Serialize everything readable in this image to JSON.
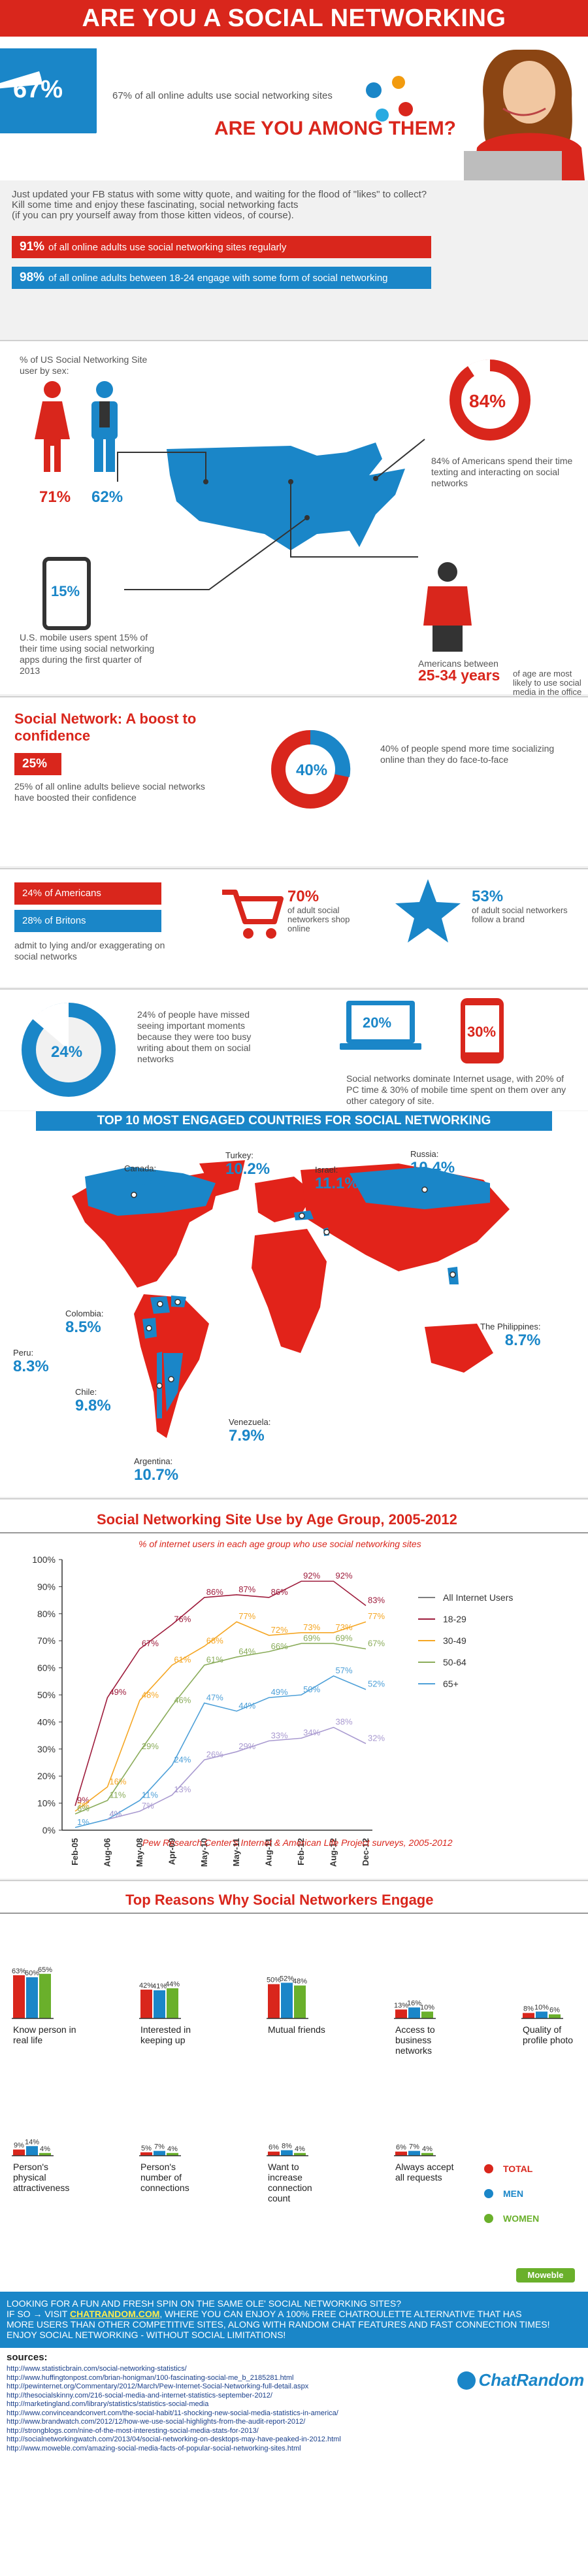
{
  "header": {
    "title": "ARE YOU A SOCIAL NETWORKING BUTTERFLY?"
  },
  "intro": {
    "stat_pct": "67%",
    "stat_text": "67% of all online adults use social networking sites",
    "question": "ARE YOU AMONG THEM?",
    "blurb": [
      "Just updated your FB status with some witty quote, and waiting for the flood of \"likes\" to collect?",
      "Kill some time and enjoy these fascinating, social networking facts",
      "(if you can pry yourself away from those kitten videos, of course)."
    ],
    "bar1_pct": "91%",
    "bar1_text": "of all online adults use social networking sites regularly",
    "bar2_pct": "98%",
    "bar2_text": "of all online adults between 18-24 engage with some form of social networking"
  },
  "usa": {
    "sex_label": "% of US Social Networking Site user by sex:",
    "women_pct": "71%",
    "men_pct": "62%",
    "texting_pct": "84%",
    "texting_text": "84% of Americans spend their time texting and interacting on social networks",
    "mobile_pct": "15%",
    "mobile_text": "U.S. mobile users spent 15% of their time using social networking apps during the first quarter of 2013",
    "age_intro": "Americans between",
    "age_range": "25-34 years",
    "age_text": "of age are most likely to use social media in the office"
  },
  "boost": {
    "title": "Social Network: A boost to confidence",
    "pct": "25%",
    "text": "25% of all online adults believe social networks have boosted their confidence",
    "f2f_pct": "40%",
    "f2f_text": "40% of people spend more time socializing online than they do face-to-face"
  },
  "lying": {
    "bar1": "24% of Americans",
    "bar2": "28% of Britons",
    "text": "admit to lying and/or exaggerating on social networks",
    "shop_pct": "70%",
    "shop_text": "of adult social networkers shop online",
    "brand_pct": "53%",
    "brand_text": "of adult social networkers follow a brand"
  },
  "missed": {
    "pct": "24%",
    "text": "24% of people have missed seeing important moments because they were too busy writing about them on social networks",
    "pc_pct": "20%",
    "mobile_pct": "30%",
    "usage_text": "Social networks dominate Internet usage, with 20% of PC time & 30% of mobile time spent on them over any other category of site."
  },
  "map": {
    "title": "TOP 10 MOST ENGAGED COUNTRIES FOR SOCIAL NETWORKING",
    "countries": [
      {
        "name": "Canada:",
        "value": "10.2%"
      },
      {
        "name": "Turkey:",
        "value": "10.2%"
      },
      {
        "name": "Israel:",
        "value": "11.1%"
      },
      {
        "name": "Russia:",
        "value": "10.4%"
      },
      {
        "name": "Colombia:",
        "value": "8.5%"
      },
      {
        "name": "Peru:",
        "value": "8.3%"
      },
      {
        "name": "Chile:",
        "value": "9.8%"
      },
      {
        "name": "Venezuela:",
        "value": "7.9%"
      },
      {
        "name": "Argentina:",
        "value": "10.7%"
      },
      {
        "name": "The Philippines:",
        "value": "8.7%"
      }
    ]
  },
  "chart_data": [
    {
      "type": "line",
      "title": "Social Networking Site Use by Age Group, 2005-2012",
      "subtitle": "% of internet users in each age group who use social networking sites",
      "source": "Pew Research Center's Internet & American Life Project surveys, 2005-2012",
      "x": [
        "Feb-05",
        "Aug-06",
        "May-08",
        "Apr-09",
        "May-10",
        "May-11",
        "Aug-11",
        "Feb-12",
        "Aug-12",
        "Dec-12"
      ],
      "ylim": [
        0,
        100
      ],
      "yticks": [
        "0%",
        "10%",
        "20%",
        "30%",
        "40%",
        "50%",
        "60%",
        "70%",
        "80%",
        "90%",
        "100%"
      ],
      "grid": false,
      "legend": "right",
      "series": [
        {
          "name": "All Internet Users",
          "color": "#7f7f7f",
          "values": [
            null,
            null,
            null,
            null,
            null,
            null,
            null,
            null,
            null,
            null
          ],
          "labels": [
            "",
            "",
            "",
            "",
            "",
            "",
            "",
            "",
            "",
            ""
          ]
        },
        {
          "name": "18-29",
          "color": "#9e1c3c",
          "values": [
            9,
            49,
            67,
            76,
            86,
            87,
            86,
            92,
            92,
            83
          ],
          "labels": [
            "9%",
            "49%",
            "67%",
            "76%",
            "86%",
            "87%",
            "86%",
            "92%",
            "92%",
            "83%"
          ]
        },
        {
          "name": "30-49",
          "color": "#f5a623",
          "values": [
            7,
            16,
            48,
            61,
            68,
            77,
            72,
            73,
            73,
            77
          ],
          "labels": [
            "7%",
            "16%",
            "48%",
            "61%",
            "68%",
            "77%",
            "72%",
            "73%",
            "73%",
            "77%"
          ]
        },
        {
          "name": "50-64",
          "color": "#8aac5a",
          "values": [
            6,
            11,
            29,
            46,
            61,
            64,
            66,
            69,
            69,
            67
          ],
          "labels": [
            "6%",
            "11%",
            "29%",
            "46%",
            "61%",
            "64%",
            "66%",
            "69%",
            "69%",
            "67%"
          ]
        },
        {
          "name": "65+",
          "color": "#4ea0d8",
          "values": [
            1,
            4,
            11,
            24,
            47,
            44,
            49,
            50,
            57,
            52
          ],
          "labels": [
            "1%",
            "4%",
            "11%",
            "24%",
            "47%",
            "44%",
            "49%",
            "50%",
            "57%",
            "52%"
          ]
        },
        {
          "name": "",
          "color": "#a99ad0",
          "values": [
            null,
            4,
            7,
            13,
            26,
            29,
            33,
            34,
            38,
            32
          ],
          "labels": [
            "",
            "4%",
            "7%",
            "13%",
            "26%",
            "29%",
            "33%",
            "34%",
            "38%",
            "32%"
          ]
        }
      ]
    },
    {
      "type": "bar",
      "title": "Top Reasons Why Social Networkers Engage",
      "ylim": [
        0,
        100
      ],
      "categories": [
        "Know person in real life",
        "Interested in keeping up",
        "Mutual friends",
        "Access to business networks",
        "Quality of profile photo",
        "Person's physical attractiveness",
        "Person's number of connections",
        "Want to increase connection count",
        "Always accept all requests"
      ],
      "series": [
        {
          "name": "TOTAL",
          "color": "#d9261c",
          "values": [
            63,
            42,
            50,
            13,
            8,
            9,
            5,
            6,
            6
          ],
          "labels": [
            "63%",
            "42%",
            "50%",
            "13%",
            "8%",
            "9%",
            "5%",
            "6%",
            "6%"
          ]
        },
        {
          "name": "MEN",
          "color": "#1a86c8",
          "values": [
            60,
            41,
            52,
            16,
            10,
            14,
            7,
            8,
            7
          ],
          "labels": [
            "60%",
            "41%",
            "52%",
            "16%",
            "10%",
            "14%",
            "7%",
            "8%",
            "7%"
          ]
        },
        {
          "name": "WOMEN",
          "color": "#6ab02b",
          "values": [
            65,
            44,
            48,
            10,
            6,
            4,
            4,
            4,
            4
          ],
          "labels": [
            "65%",
            "44%",
            "48%",
            "10%",
            "6%",
            "4%",
            "4%",
            "4%",
            "4%"
          ]
        }
      ],
      "legend": "right"
    }
  ],
  "footer": {
    "brand_tag": "Moweble",
    "promo_lines": [
      "LOOKING FOR A  FUN AND FRESH SPIN ON THE SAME OLE' SOCIAL NETWORKING SITES?",
      "IF SO → VISIT",
      "CHATRANDOM.COM",
      ", WHERE YOU CAN ENJOY A 100% FREE CHATROULETTE ALTERNATIVE THAT HAS",
      "MORE USERS THAN OTHER COMPETITIVE SITES, ALONG WITH RANDOM CHAT FEATURES AND FAST CONNECTION TIMES!",
      "ENJOY SOCIAL NETWORKING - WITHOUT SOCIAL LIMITATIONS!"
    ],
    "sources_label": "sources:",
    "sources": [
      "http://www.statisticbrain.com/social-networking-statistics/",
      "http://www.huffingtonpost.com/brian-honigman/100-fascinating-social-me_b_2185281.html",
      "http://pewinternet.org/Commentary/2012/March/Pew-Internet-Social-Networking-full-detail.aspx",
      "http://thesocialskinny.com/216-social-media-and-internet-statistics-september-2012/",
      "http://marketingland.com/library/statistics/statistics-social-media",
      "http://www.convinceandconvert.com/the-social-habit/11-shocking-new-social-media-statistics-in-america/",
      "http://www.brandwatch.com/2012/12/how-we-use-social-highlights-from-the-audit-report-2012/",
      "http://strongblogs.com/nine-of-the-most-interesting-social-media-stats-for-2013/",
      "http://socialnetworkingwatch.com/2013/04/social-networking-on-desktops-may-have-peaked-in-2012.html",
      "http://www.moweble.com/amazing-social-media-facts-of-popular-social-networking-sites.html"
    ],
    "logo_text": "ChatRandom"
  },
  "colors": {
    "red": "#d9261c",
    "blue": "#1a86c8",
    "dark": "#333333",
    "map_red": "#e2231a"
  }
}
